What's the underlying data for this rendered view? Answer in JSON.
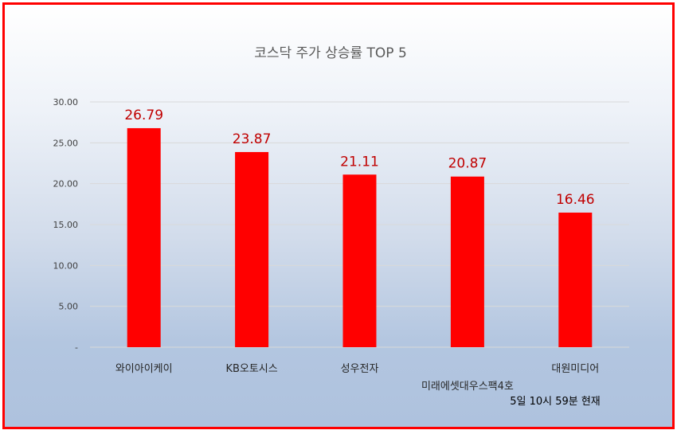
{
  "colors": {
    "border": "#ff0000",
    "bar": "#ff0000",
    "data_label": "#c00000",
    "grid": "#d9d9d9",
    "title": "#595959"
  },
  "footnote": "5일 10시 59분 현재",
  "chart_data": {
    "type": "bar",
    "title": "코스닥 주가 상승률 TOP 5",
    "xlabel": "",
    "ylabel": "",
    "categories": [
      "와이아이케이",
      "KB오토시스",
      "성우전자",
      "미래에셋대우스팩4호",
      "대원미디어"
    ],
    "values": [
      26.79,
      23.87,
      21.11,
      20.87,
      16.46
    ],
    "data_labels": [
      "26.79",
      "23.87",
      "21.11",
      "20.87",
      "16.46"
    ],
    "ylim": [
      0,
      30
    ],
    "yticks": [
      {
        "value": 0,
        "label": "-"
      },
      {
        "value": 5,
        "label": "5.00"
      },
      {
        "value": 10,
        "label": "10.00"
      },
      {
        "value": 15,
        "label": "15.00"
      },
      {
        "value": 20,
        "label": "20.00"
      },
      {
        "value": 25,
        "label": "25.00"
      },
      {
        "value": 30,
        "label": "30.00"
      }
    ],
    "grid": true,
    "legend": "none"
  }
}
